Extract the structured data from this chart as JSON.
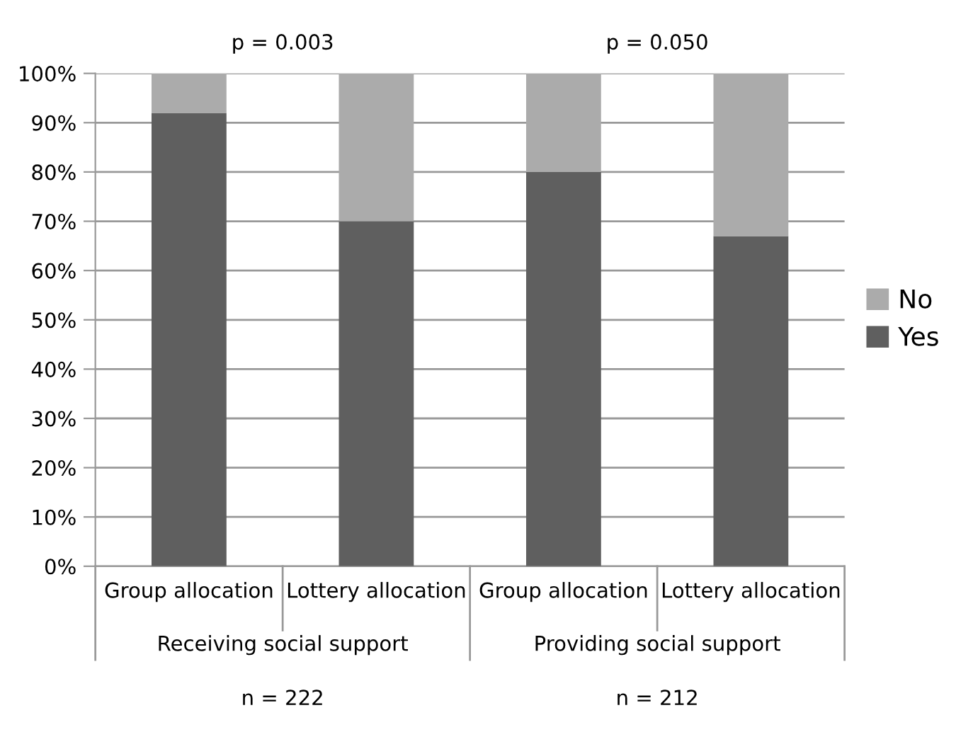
{
  "chart_data": {
    "type": "bar",
    "stacked": true,
    "categories": [
      "Group allocation",
      "Lottery allocation",
      "Group allocation",
      "Lottery allocation"
    ],
    "series": [
      {
        "name": "Yes",
        "color": "#5f5f5f",
        "values": [
          92,
          70,
          80,
          67
        ]
      },
      {
        "name": "No",
        "color": "#ababab",
        "values": [
          8,
          30,
          20,
          33
        ]
      }
    ],
    "ylim": [
      0,
      100
    ],
    "yticks": [
      {
        "value": 0,
        "label": "0%"
      },
      {
        "value": 10,
        "label": "10%"
      },
      {
        "value": 20,
        "label": "20%"
      },
      {
        "value": 30,
        "label": "30%"
      },
      {
        "value": 40,
        "label": "40%"
      },
      {
        "value": 50,
        "label": "50%"
      },
      {
        "value": 60,
        "label": "60%"
      },
      {
        "value": 70,
        "label": "70%"
      },
      {
        "value": 80,
        "label": "80%"
      },
      {
        "value": 90,
        "label": "90%"
      },
      {
        "value": 100,
        "label": "100%"
      }
    ],
    "grid": "y",
    "legend": "right",
    "annotations": [
      "p = 0.003",
      "p = 0.050",
      "Receiving social support",
      "Providing social support",
      "n = 222",
      "n = 212"
    ]
  }
}
